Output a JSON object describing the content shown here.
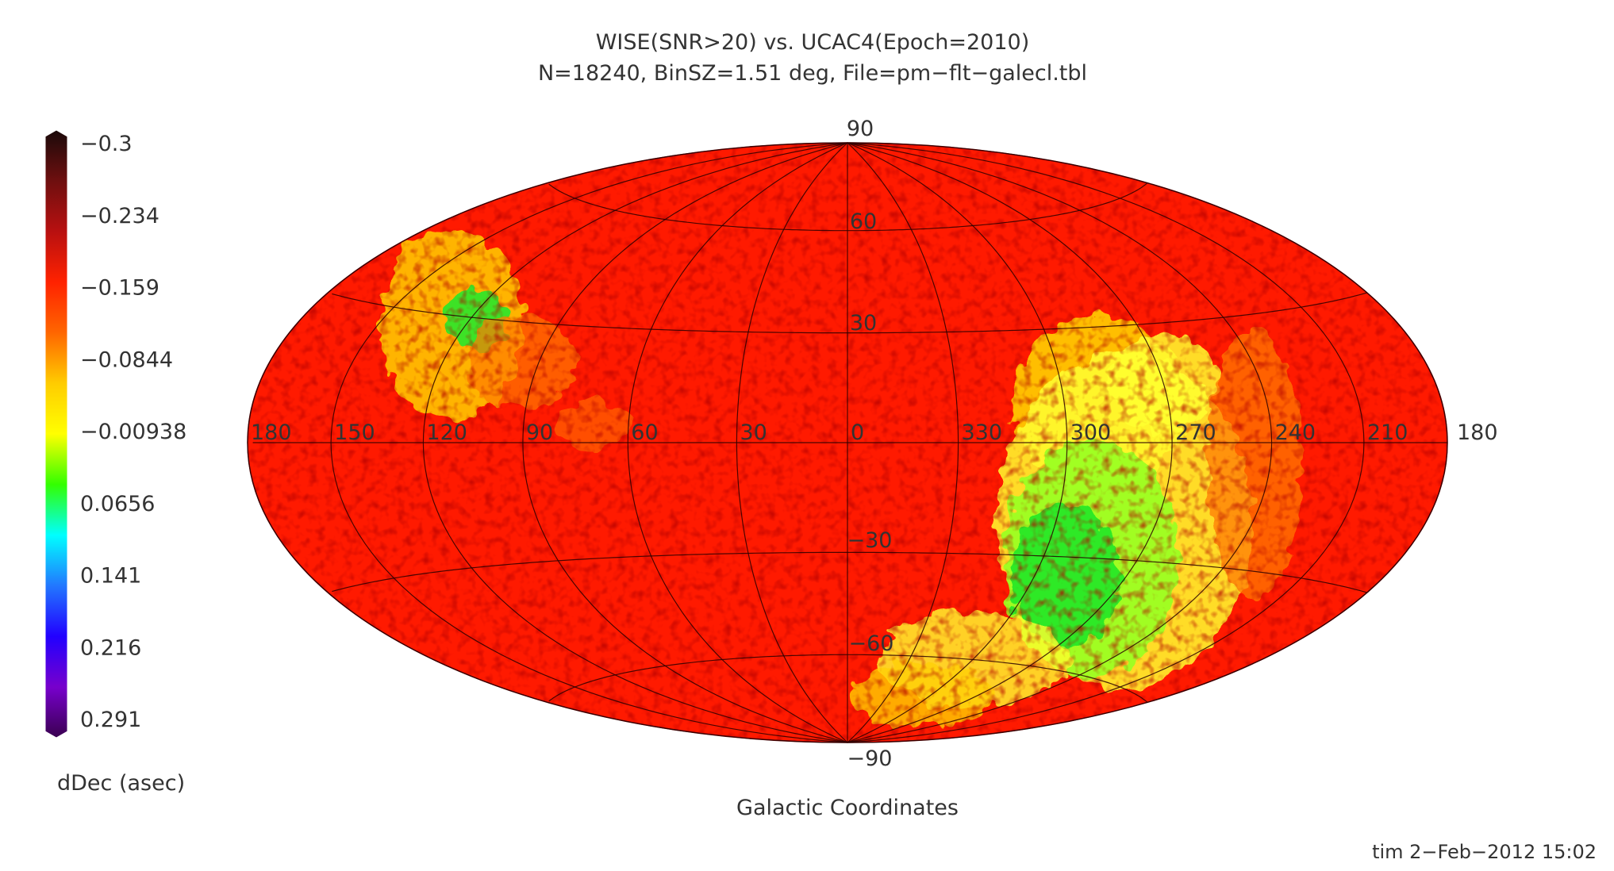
{
  "title": {
    "line1": "WISE(SNR>20) vs. UCAC4(Epoch=2010)",
    "line2": "N=18240, BinSZ=1.51 deg, File=pm−flt−galecl.tbl"
  },
  "colorbar": {
    "label": "dDec (asec)",
    "ticks": [
      "−0.3",
      "−0.234",
      "−0.159",
      "−0.0844",
      "−0.00938",
      "0.0656",
      "0.141",
      "0.216",
      "0.291"
    ],
    "range": [
      -0.3,
      0.291
    ],
    "stops": [
      "#1a0a0a",
      "#6e0f0f",
      "#b81010",
      "#ff2200",
      "#ff6600",
      "#ffcc00",
      "#ffff00",
      "#33ff00",
      "#00ffff",
      "#2277ff",
      "#2200ff",
      "#7700cc",
      "#3a0050"
    ]
  },
  "map": {
    "projection": "Hammer-Aitoff",
    "coordinate_system": "Galactic Coordinates",
    "longitude_labels": [
      "180",
      "150",
      "120",
      "90",
      "60",
      "30",
      "0",
      "330",
      "300",
      "270",
      "240",
      "210",
      "180"
    ],
    "latitude_labels": {
      "north_pole": "90",
      "south_pole": "−90",
      "lat60": "60",
      "lat30": "30",
      "latm30": "−30",
      "latm60": "−60"
    },
    "background_color": "#ff1a00",
    "highlight_colors": [
      "#ff7a00",
      "#ffd000",
      "#ffff30",
      "#9cff20",
      "#28e828"
    ]
  },
  "footer": {
    "credit": "tim  2−Feb−2012 15:02"
  }
}
